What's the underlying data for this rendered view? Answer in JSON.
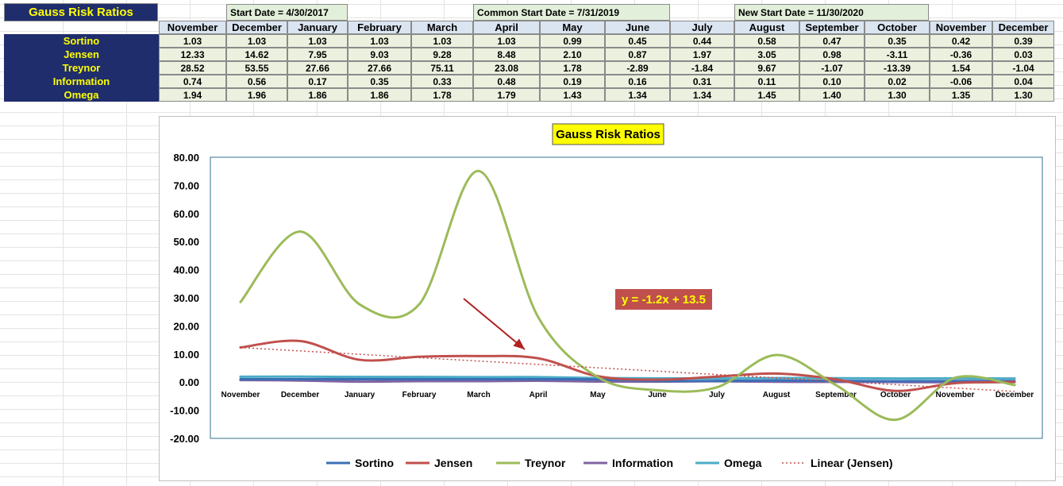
{
  "sheet": {
    "title": "Gauss Risk Ratios",
    "date_labels": [
      "Start Date = 4/30/2017",
      "Common Start Date = 7/31/2019",
      "New Start Date = 11/30/2020"
    ],
    "months": [
      "November",
      "December",
      "January",
      "February",
      "March",
      "April",
      "May",
      "June",
      "July",
      "August",
      "September",
      "October",
      "November",
      "December"
    ],
    "rows": [
      {
        "label": "Sortino",
        "values": [
          "1.03",
          "1.03",
          "1.03",
          "1.03",
          "1.03",
          "1.03",
          "0.99",
          "0.45",
          "0.44",
          "0.58",
          "0.47",
          "0.35",
          "0.42",
          "0.39"
        ]
      },
      {
        "label": "Jensen",
        "values": [
          "12.33",
          "14.62",
          "7.95",
          "9.03",
          "9.28",
          "8.48",
          "2.10",
          "0.87",
          "1.97",
          "3.05",
          "0.98",
          "-3.11",
          "-0.36",
          "0.03"
        ]
      },
      {
        "label": "Treynor",
        "values": [
          "28.52",
          "53.55",
          "27.66",
          "27.66",
          "75.11",
          "23.08",
          "1.78",
          "-2.89",
          "-1.84",
          "9.67",
          "-1.07",
          "-13.39",
          "1.54",
          "-1.04"
        ]
      },
      {
        "label": "Information",
        "values": [
          "0.74",
          "0.56",
          "0.17",
          "0.35",
          "0.33",
          "0.48",
          "0.19",
          "0.16",
          "0.31",
          "0.11",
          "0.10",
          "0.02",
          "-0.06",
          "0.04"
        ]
      },
      {
        "label": "Omega",
        "values": [
          "1.94",
          "1.96",
          "1.86",
          "1.86",
          "1.78",
          "1.79",
          "1.43",
          "1.34",
          "1.34",
          "1.45",
          "1.40",
          "1.30",
          "1.35",
          "1.30"
        ]
      }
    ]
  },
  "chart_data": {
    "type": "line",
    "title": "Gauss Risk Ratios",
    "categories": [
      "November",
      "December",
      "January",
      "February",
      "March",
      "April",
      "May",
      "June",
      "July",
      "August",
      "September",
      "October",
      "November",
      "December"
    ],
    "ylim": [
      -20,
      80
    ],
    "yticks": [
      "80.00",
      "70.00",
      "60.00",
      "50.00",
      "40.00",
      "30.00",
      "20.00",
      "10.00",
      "0.00",
      "-10.00",
      "-20.00"
    ],
    "series": [
      {
        "name": "Sortino",
        "color": "#3b6fb6",
        "values": [
          1.03,
          1.03,
          1.03,
          1.03,
          1.03,
          1.03,
          0.99,
          0.45,
          0.44,
          0.58,
          0.47,
          0.35,
          0.42,
          0.39
        ]
      },
      {
        "name": "Jensen",
        "color": "#c0504d",
        "values": [
          12.33,
          14.62,
          7.95,
          9.03,
          9.28,
          8.48,
          2.1,
          0.87,
          1.97,
          3.05,
          0.98,
          -3.11,
          -0.36,
          0.03
        ]
      },
      {
        "name": "Treynor",
        "color": "#9bbb59",
        "values": [
          28.52,
          53.55,
          27.66,
          27.66,
          75.11,
          23.08,
          1.78,
          -2.89,
          -1.84,
          9.67,
          -1.07,
          -13.39,
          1.54,
          -1.04
        ]
      },
      {
        "name": "Information",
        "color": "#8064a2",
        "values": [
          0.74,
          0.56,
          0.17,
          0.35,
          0.33,
          0.48,
          0.19,
          0.16,
          0.31,
          0.11,
          0.1,
          0.02,
          -0.06,
          0.04
        ]
      },
      {
        "name": "Omega",
        "color": "#4bacc6",
        "values": [
          1.94,
          1.96,
          1.86,
          1.86,
          1.78,
          1.79,
          1.43,
          1.34,
          1.34,
          1.45,
          1.4,
          1.3,
          1.35,
          1.3
        ]
      }
    ],
    "trendline": {
      "name": "Linear (Jensen)",
      "color": "#c0504d",
      "slope": -1.2,
      "intercept": 13.5,
      "equation": "y = -1.2x + 13.5"
    },
    "legend_position": "bottom",
    "colors": {
      "title_bg": "#ffff00",
      "equation_bg": "#c0504d",
      "equation_text": "#ffff00",
      "arrow": "#b22222"
    }
  }
}
